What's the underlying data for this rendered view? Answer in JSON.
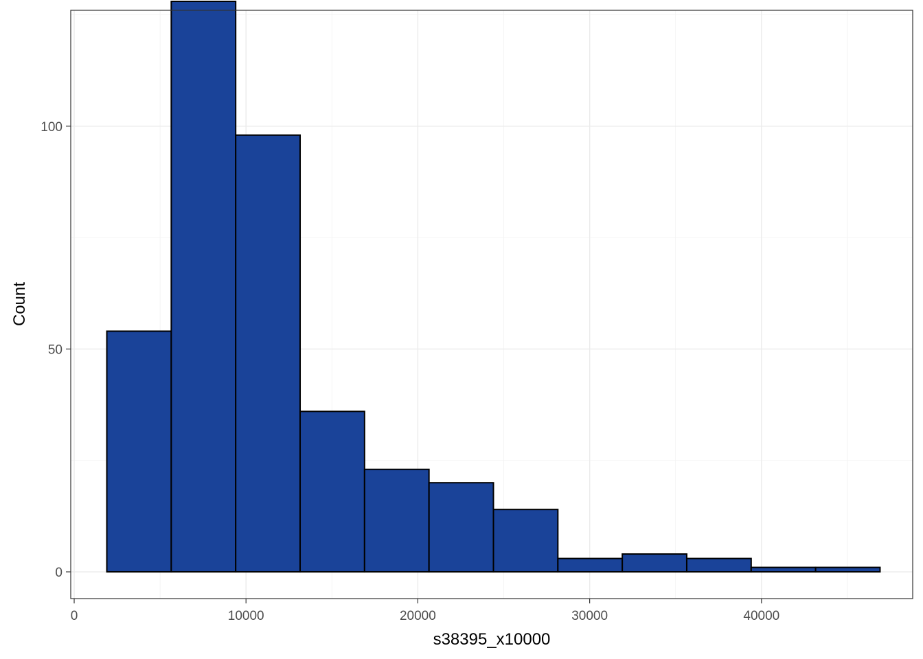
{
  "chart_data": {
    "type": "bar",
    "subtype": "histogram",
    "xlabel": "s38395_x10000",
    "ylabel": "Count",
    "bar_color": "#1A4399",
    "bar_outline": "#000000",
    "grid": true,
    "xlim": [
      -200,
      48800
    ],
    "ylim": [
      -6,
      126
    ],
    "x_ticks": [
      0,
      10000,
      20000,
      30000,
      40000
    ],
    "x_tick_labels": [
      "0",
      "10000",
      "20000",
      "30000",
      "40000"
    ],
    "y_ticks": [
      0,
      50,
      100
    ],
    "y_tick_labels": [
      "0",
      "50",
      "100"
    ],
    "bins": [
      {
        "x0": 1900,
        "x1": 5650,
        "count": 54
      },
      {
        "x0": 5650,
        "x1": 9400,
        "count": 128
      },
      {
        "x0": 9400,
        "x1": 13150,
        "count": 98
      },
      {
        "x0": 13150,
        "x1": 16900,
        "count": 36
      },
      {
        "x0": 16900,
        "x1": 20650,
        "count": 23
      },
      {
        "x0": 20650,
        "x1": 24400,
        "count": 20
      },
      {
        "x0": 24400,
        "x1": 28150,
        "count": 14
      },
      {
        "x0": 28150,
        "x1": 31900,
        "count": 3
      },
      {
        "x0": 31900,
        "x1": 35650,
        "count": 4
      },
      {
        "x0": 35650,
        "x1": 39400,
        "count": 3
      },
      {
        "x0": 39400,
        "x1": 43150,
        "count": 1
      },
      {
        "x0": 43150,
        "x1": 46900,
        "count": 1
      }
    ]
  }
}
